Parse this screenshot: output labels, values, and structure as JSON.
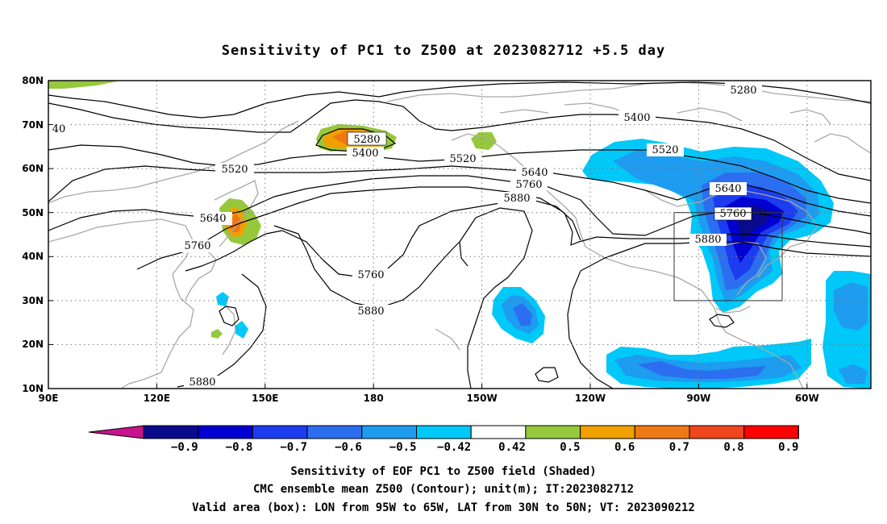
{
  "title": "Sensitivity of PC1 to Z500 at 2023082712 +5.5 day",
  "lat_ticks": [
    "80N",
    "70N",
    "60N",
    "50N",
    "40N",
    "30N",
    "20N",
    "10N"
  ],
  "lon_ticks": [
    "90E",
    "120E",
    "150E",
    "180",
    "150W",
    "120W",
    "90W",
    "60W"
  ],
  "contour_labels": {
    "c5280a": "5280",
    "c5280b": "5280",
    "c5400a": "5400",
    "c5400b": "5400",
    "c40": "40",
    "c5520a": "5520",
    "c5520b": "5520",
    "c5520c": "5520",
    "c5640a": "5640",
    "c5640b": "5640",
    "c5640c": "5640",
    "c5760a": "5760",
    "c5760b": "5760",
    "c5760c": "5760",
    "c5760d": "5760",
    "c5880a": "5880",
    "c5880b": "5880",
    "c5880c": "5880",
    "c5880d": "5880"
  },
  "colorbar": {
    "labels": [
      "−0.9",
      "−0.8",
      "−0.7",
      "−0.6",
      "−0.5",
      "−0.42",
      "0.42",
      "0.5",
      "0.6",
      "0.7",
      "0.8",
      "0.9"
    ],
    "colors": [
      "#0a0a8c",
      "#0000d2",
      "#1c3cf0",
      "#2c6ef0",
      "#1e9cf0",
      "#00c8f8",
      "#ffffff",
      "#96c83c",
      "#f0a000",
      "#f07814",
      "#f0461e",
      "#ff0000"
    ],
    "under_color": "#c8148c",
    "over_color": "#f0a0c8"
  },
  "caption": {
    "line1": "Sensitivity of EOF PC1 to Z500 field (Shaded)",
    "line2": "CMC ensemble mean Z500 (Contour); unit(m); IT:2023082712",
    "line3": "Valid area (box): LON from 95W to 65W, LAT from 30N to 50N; VT: 2023090212"
  },
  "valid_box": {
    "lon_west": "95W",
    "lon_east": "65W",
    "lat_south": "30N",
    "lat_north": "50N"
  }
}
